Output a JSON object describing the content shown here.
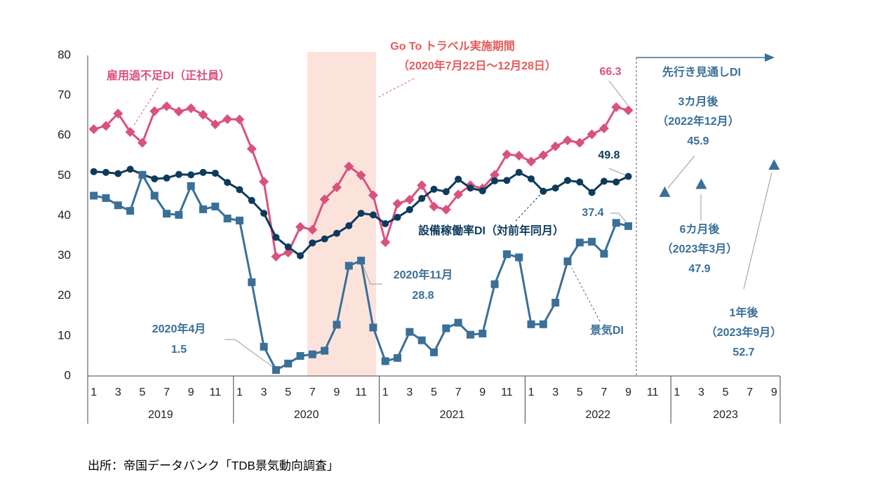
{
  "chart_data": {
    "type": "line",
    "categories": [
      "1",
      null,
      "3",
      null,
      "5",
      null,
      "7",
      null,
      "9",
      null,
      "11",
      null,
      "1",
      null,
      "3",
      null,
      "5",
      null,
      "7",
      null,
      "9",
      null,
      "11",
      null,
      "1",
      null,
      "3",
      null,
      "5",
      null,
      "7",
      null,
      "9",
      null,
      "11",
      null,
      "1",
      null,
      "3",
      null,
      "5",
      null,
      "7",
      null,
      "9",
      null,
      "11",
      null,
      "1",
      null,
      "3",
      null,
      "5",
      null,
      "7",
      null,
      "9"
    ],
    "year_labels": [
      "2019",
      "2020",
      "2021",
      "2022",
      "2023"
    ],
    "ylim": [
      0,
      80
    ],
    "yticks": [
      0,
      10,
      20,
      30,
      40,
      50,
      60,
      70,
      80
    ],
    "series": [
      {
        "name": "雇用過不足DI（正社員）",
        "color": "#d9527f",
        "marker": "diamond",
        "line": true,
        "values": [
          61.6,
          62.4,
          65.5,
          60.9,
          58.2,
          66.1,
          67.3,
          66.0,
          66.8,
          65.2,
          62.8,
          64.1,
          64.0,
          56.7,
          48.5,
          29.8,
          30.8,
          37.2,
          36.5,
          44.1,
          47.1,
          52.3,
          50.1,
          45.1,
          33.4,
          43.0,
          44.0,
          47.6,
          42.3,
          41.5,
          45.3,
          47.6,
          46.8,
          50.2,
          55.3,
          55.0,
          53.5,
          55.1,
          57.3,
          58.8,
          58.2,
          60.3,
          61.8,
          67.1,
          66.3,
          null,
          null,
          null,
          null,
          null,
          null,
          null,
          null,
          null,
          null,
          null,
          null
        ]
      },
      {
        "name": "設備稼働率DI（対前年同月）",
        "color": "#0d3b5c",
        "marker": "circle",
        "line": true,
        "values": [
          51.0,
          50.8,
          50.5,
          51.6,
          50.3,
          49.2,
          49.4,
          50.3,
          50.2,
          50.8,
          50.6,
          48.3,
          46.5,
          43.8,
          40.6,
          34.6,
          32.2,
          30.0,
          33.2,
          34.2,
          35.6,
          37.5,
          40.6,
          40.2,
          38.0,
          39.6,
          41.5,
          44.3,
          46.6,
          46.0,
          49.1,
          46.9,
          46.2,
          48.7,
          48.8,
          50.8,
          49.2,
          46.1,
          46.9,
          48.8,
          48.4,
          45.8,
          48.6,
          48.4,
          49.8,
          null,
          null,
          null,
          null,
          null,
          null,
          null,
          null,
          null,
          null,
          null,
          null
        ]
      },
      {
        "name": "景気DI",
        "color": "#3a6f98",
        "marker": "square",
        "line": true,
        "values": [
          45.0,
          44.4,
          42.6,
          41.2,
          50.2,
          45.0,
          40.5,
          40.2,
          47.4,
          41.6,
          42.3,
          39.3,
          38.8,
          23.4,
          7.3,
          1.5,
          3.1,
          5.0,
          5.4,
          6.3,
          12.8,
          27.5,
          28.8,
          12.1,
          3.7,
          4.5,
          11.0,
          8.9,
          5.9,
          11.9,
          13.3,
          10.3,
          10.6,
          22.9,
          30.4,
          29.6,
          12.9,
          12.9,
          18.3,
          28.6,
          33.3,
          33.5,
          30.5,
          38.2,
          37.4,
          null,
          null,
          null,
          null,
          null,
          null,
          null,
          null,
          null,
          null,
          null,
          null
        ]
      },
      {
        "name": "先行き見通しDI",
        "color": "#3a6f98",
        "marker": "triangle",
        "line": false,
        "values": [
          null,
          null,
          null,
          null,
          null,
          null,
          null,
          null,
          null,
          null,
          null,
          null,
          null,
          null,
          null,
          null,
          null,
          null,
          null,
          null,
          null,
          null,
          null,
          null,
          null,
          null,
          null,
          null,
          null,
          null,
          null,
          null,
          null,
          null,
          null,
          null,
          null,
          null,
          null,
          null,
          null,
          null,
          null,
          null,
          null,
          null,
          null,
          45.9,
          null,
          null,
          47.9,
          null,
          null,
          null,
          null,
          null,
          52.7
        ]
      }
    ],
    "annotations": {
      "go_to": "Go To トラベル実施期間",
      "go_to_period": "（2020年7月22日～12月28日）",
      "apr2020": "2020年4月",
      "nov2020": "2020年11月",
      "f3": "3カ月後",
      "f3_date": "（2022年12月）",
      "f6": "6カ月後",
      "f6_date": "（2023年3月）",
      "f12": "1年後",
      "f12_date": "（2023年9月）"
    },
    "source": "出所：帝国データバンク「TDB景気動向調査」"
  }
}
